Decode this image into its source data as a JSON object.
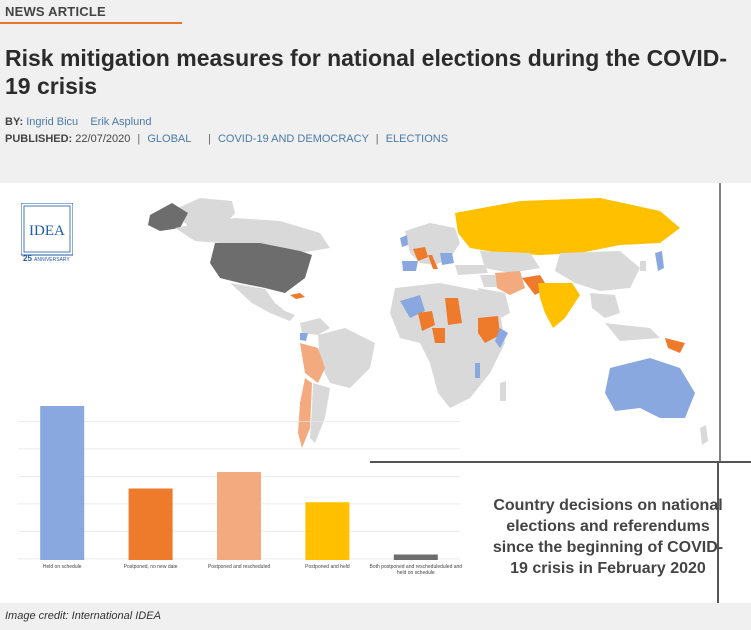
{
  "article": {
    "tag": "NEWS ARTICLE",
    "title": "Risk mitigation measures for national elections during the COVID-19 crisis",
    "by_label": "BY:",
    "authors": [
      "Ingrid Bicu",
      "Erik Asplund"
    ],
    "published_label": "PUBLISHED:",
    "published_date": "22/07/2020",
    "categories": [
      "GLOBAL",
      "COVID-19 AND DEMOCRACY",
      "ELECTIONS"
    ]
  },
  "figure": {
    "logo": {
      "text": "IDEA",
      "anniversary": "25",
      "anniversary_label": "ANNIVERSARY"
    },
    "caption": "Country decisions on national elections and referendums since the beginning of COVID-19 crisis in February 2020",
    "credit": "Image credit: International IDEA",
    "colors": {
      "held": "#8aa8e0",
      "postponed_no_date": "#ee7a2c",
      "postponed_rescheduled": "#f2aa7e",
      "postponed_held": "#ffc000",
      "both": "#6d6d6d",
      "land": "#d9d9d9"
    }
  },
  "chart_data": {
    "type": "bar",
    "categories": [
      "Held on schedule",
      "Postponed, no new date",
      "Postponed and rescheduled",
      "Postponed and held",
      "Both postponed and rescheduleduled and held on schedule"
    ],
    "values": [
      56,
      26,
      32,
      21,
      2
    ],
    "ylim": [
      0,
      60
    ],
    "grid": true,
    "title": "",
    "xlabel": "",
    "ylabel": ""
  }
}
